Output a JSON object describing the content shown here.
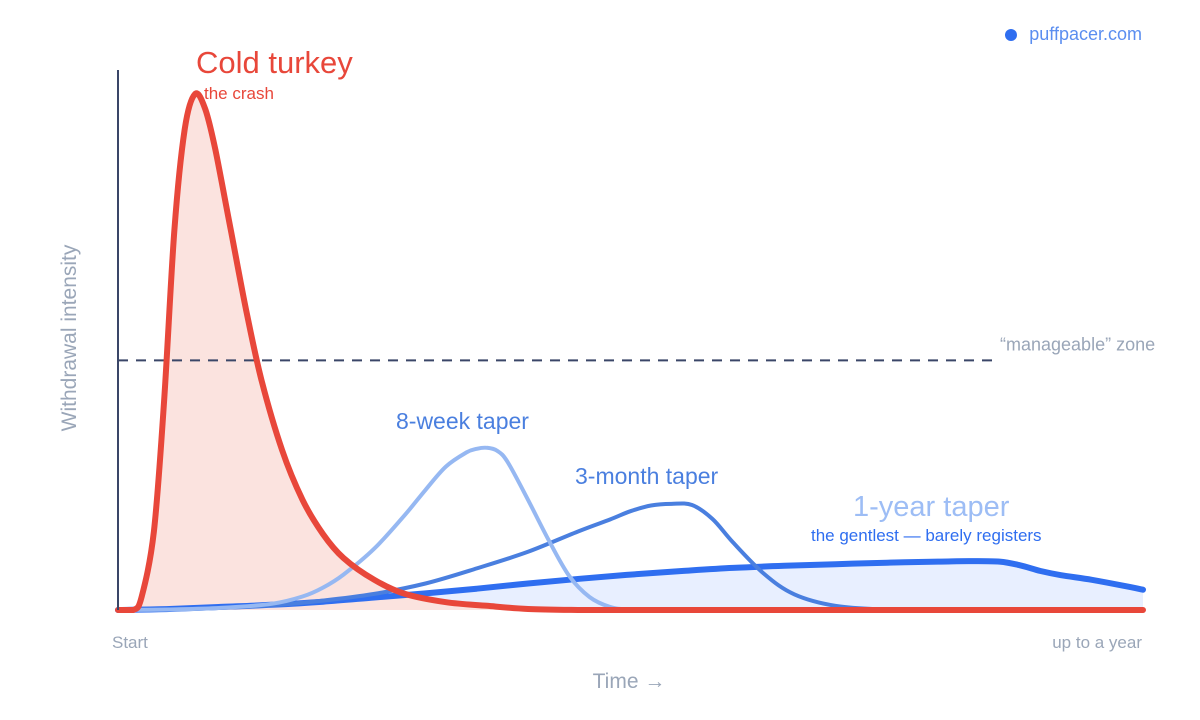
{
  "brand": {
    "text": "puffpacer.com",
    "icon": "dot-icon",
    "color": "#2f6ef0"
  },
  "chart_data": {
    "type": "line",
    "title": "",
    "xlabel": "Time →",
    "ylabel": "Withdrawal intensity",
    "xlim": [
      0,
      100
    ],
    "ylim": [
      0,
      100
    ],
    "x_tick_labels": {
      "start": "Start",
      "end": "up to a year"
    },
    "grid": false,
    "reference_line": {
      "label": "“manageable” zone",
      "y": 48,
      "style": "dashed",
      "color": "#3a4668"
    },
    "series": [
      {
        "name": "1-year taper",
        "subtitle": "the gentlest — barely registers",
        "color": "#2f6ef0",
        "label_color": "#9dbdf5",
        "subtitle_color": "#2f6ef0",
        "fill": "#e8efff",
        "stroke_width": 6,
        "x": [
          0,
          5,
          10,
          15,
          20,
          25,
          30,
          35,
          40,
          45,
          50,
          55,
          60,
          65,
          70,
          75,
          80,
          83,
          86,
          88,
          90,
          92,
          95,
          98,
          100
        ],
        "y": [
          0,
          0.2,
          0.6,
          1.0,
          1.6,
          2.4,
          3.2,
          4.1,
          5.1,
          6.0,
          6.8,
          7.5,
          8.1,
          8.5,
          8.8,
          9.1,
          9.3,
          9.4,
          9.3,
          8.6,
          7.5,
          6.7,
          5.8,
          4.7,
          3.9
        ]
      },
      {
        "name": "3-month taper",
        "color": "#4a7fdf",
        "label_color": "#4a7fdf",
        "stroke_width": 4,
        "x": [
          0,
          5,
          10,
          15,
          20,
          25,
          30,
          35,
          40,
          45,
          48,
          50,
          52,
          54,
          56,
          58,
          60,
          63,
          66,
          70,
          75,
          80,
          90,
          100
        ],
        "y": [
          0,
          0.1,
          0.4,
          0.9,
          1.8,
          3.1,
          5.1,
          8.0,
          11.2,
          15.2,
          17.4,
          19.0,
          20.1,
          20.4,
          20.2,
          17.5,
          13.0,
          7.0,
          3.0,
          0.8,
          0.1,
          0,
          0,
          0
        ]
      },
      {
        "name": "8-week taper",
        "color": "#96b8f2",
        "label_color": "#4a7fdf",
        "stroke_width": 4,
        "x": [
          0,
          5,
          10,
          15,
          18,
          20,
          22,
          25,
          28,
          30,
          32,
          34,
          35,
          36,
          37,
          38,
          40,
          42,
          44,
          46,
          48,
          50,
          55,
          60,
          70,
          100
        ],
        "y": [
          0,
          0.1,
          0.4,
          1.2,
          2.6,
          4.3,
          6.8,
          11.8,
          18.3,
          23.1,
          27.6,
          30.3,
          31.0,
          31.2,
          30.6,
          28.5,
          21.2,
          13.5,
          6.6,
          2.5,
          0.6,
          0.1,
          0,
          0,
          0,
          0
        ]
      },
      {
        "name": "Cold turkey",
        "subtitle": "the crash",
        "color": "#e8473a",
        "label_color": "#e8473a",
        "subtitle_color": "#e8473a",
        "fill": "#fbe3df",
        "stroke_width": 6,
        "x": [
          0,
          1.5,
          2.3,
          3.5,
          4.5,
          5.5,
          6.5,
          7.5,
          8.5,
          9.5,
          11,
          12.5,
          14,
          16,
          18,
          20,
          22,
          25,
          28,
          32,
          36,
          40,
          45,
          50,
          60,
          100
        ],
        "y": [
          0,
          0,
          2.5,
          15.1,
          40.2,
          73.1,
          92.3,
          99.2,
          96.4,
          88.5,
          73.1,
          57.7,
          44.2,
          30.8,
          21.2,
          14.6,
          10.0,
          5.8,
          3.1,
          1.5,
          0.8,
          0.2,
          0,
          0,
          0,
          0
        ]
      }
    ]
  }
}
